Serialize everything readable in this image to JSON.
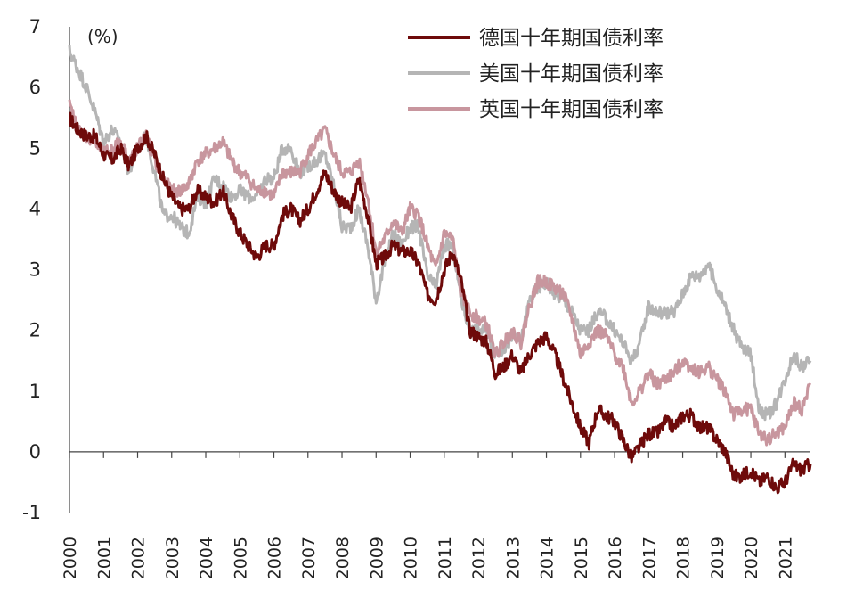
{
  "chart_data": {
    "type": "line",
    "unit_label": "(%)",
    "xlim": [
      2000,
      2021.75
    ],
    "ylim": [
      -1,
      7
    ],
    "y_ticks": [
      7,
      6,
      5,
      4,
      3,
      2,
      1,
      0,
      -1
    ],
    "x_ticks": [
      "2000",
      "2001",
      "2002",
      "2003",
      "2004",
      "2005",
      "2006",
      "2007",
      "2008",
      "2009",
      "2010",
      "2011",
      "2012",
      "2013",
      "2014",
      "2015",
      "2016",
      "2017",
      "2018",
      "2019",
      "2020",
      "2021"
    ],
    "legend_position": "top-right",
    "series": [
      {
        "name": "德国十年期国债利率",
        "color": "#6e0a0a",
        "points": [
          [
            2000.0,
            5.5
          ],
          [
            2000.25,
            5.3
          ],
          [
            2000.5,
            5.2
          ],
          [
            2000.75,
            5.2
          ],
          [
            2001.0,
            4.9
          ],
          [
            2001.25,
            4.8
          ],
          [
            2001.5,
            5.0
          ],
          [
            2001.75,
            4.7
          ],
          [
            2002.0,
            5.0
          ],
          [
            2002.25,
            5.2
          ],
          [
            2002.5,
            4.9
          ],
          [
            2002.75,
            4.5
          ],
          [
            2003.0,
            4.2
          ],
          [
            2003.25,
            4.0
          ],
          [
            2003.5,
            4.0
          ],
          [
            2003.75,
            4.3
          ],
          [
            2004.0,
            4.2
          ],
          [
            2004.25,
            4.1
          ],
          [
            2004.5,
            4.3
          ],
          [
            2004.75,
            3.9
          ],
          [
            2005.0,
            3.6
          ],
          [
            2005.25,
            3.4
          ],
          [
            2005.5,
            3.2
          ],
          [
            2005.75,
            3.4
          ],
          [
            2006.0,
            3.4
          ],
          [
            2006.25,
            3.9
          ],
          [
            2006.5,
            4.0
          ],
          [
            2006.75,
            3.8
          ],
          [
            2007.0,
            4.0
          ],
          [
            2007.25,
            4.3
          ],
          [
            2007.5,
            4.6
          ],
          [
            2007.75,
            4.3
          ],
          [
            2008.0,
            4.1
          ],
          [
            2008.25,
            4.0
          ],
          [
            2008.5,
            4.5
          ],
          [
            2008.75,
            3.9
          ],
          [
            2009.0,
            3.1
          ],
          [
            2009.25,
            3.2
          ],
          [
            2009.5,
            3.4
          ],
          [
            2009.75,
            3.3
          ],
          [
            2010.0,
            3.3
          ],
          [
            2010.25,
            3.1
          ],
          [
            2010.5,
            2.6
          ],
          [
            2010.75,
            2.5
          ],
          [
            2011.0,
            3.0
          ],
          [
            2011.25,
            3.3
          ],
          [
            2011.5,
            2.8
          ],
          [
            2011.75,
            2.0
          ],
          [
            2012.0,
            1.9
          ],
          [
            2012.25,
            1.8
          ],
          [
            2012.5,
            1.3
          ],
          [
            2012.75,
            1.4
          ],
          [
            2013.0,
            1.6
          ],
          [
            2013.25,
            1.3
          ],
          [
            2013.5,
            1.6
          ],
          [
            2013.75,
            1.8
          ],
          [
            2014.0,
            1.9
          ],
          [
            2014.25,
            1.6
          ],
          [
            2014.5,
            1.2
          ],
          [
            2014.75,
            0.8
          ],
          [
            2015.0,
            0.4
          ],
          [
            2015.25,
            0.15
          ],
          [
            2015.5,
            0.7
          ],
          [
            2015.75,
            0.6
          ],
          [
            2016.0,
            0.5
          ],
          [
            2016.25,
            0.2
          ],
          [
            2016.5,
            -0.1
          ],
          [
            2016.75,
            0.1
          ],
          [
            2017.0,
            0.3
          ],
          [
            2017.25,
            0.3
          ],
          [
            2017.5,
            0.5
          ],
          [
            2017.75,
            0.4
          ],
          [
            2018.0,
            0.6
          ],
          [
            2018.25,
            0.6
          ],
          [
            2018.5,
            0.4
          ],
          [
            2018.75,
            0.4
          ],
          [
            2019.0,
            0.2
          ],
          [
            2019.25,
            0.0
          ],
          [
            2019.5,
            -0.4
          ],
          [
            2019.75,
            -0.4
          ],
          [
            2020.0,
            -0.3
          ],
          [
            2020.25,
            -0.5
          ],
          [
            2020.5,
            -0.4
          ],
          [
            2020.75,
            -0.6
          ],
          [
            2021.0,
            -0.5
          ],
          [
            2021.25,
            -0.2
          ],
          [
            2021.5,
            -0.3
          ],
          [
            2021.75,
            -0.2
          ]
        ]
      },
      {
        "name": "美国十年期国债利率",
        "color": "#b5b5b5",
        "points": [
          [
            2000.0,
            6.6
          ],
          [
            2000.25,
            6.3
          ],
          [
            2000.5,
            6.0
          ],
          [
            2000.75,
            5.6
          ],
          [
            2001.0,
            5.1
          ],
          [
            2001.25,
            5.3
          ],
          [
            2001.5,
            5.1
          ],
          [
            2001.75,
            4.6
          ],
          [
            2002.0,
            5.0
          ],
          [
            2002.25,
            5.2
          ],
          [
            2002.5,
            4.6
          ],
          [
            2002.75,
            3.9
          ],
          [
            2003.0,
            3.9
          ],
          [
            2003.25,
            3.7
          ],
          [
            2003.5,
            3.6
          ],
          [
            2003.75,
            4.2
          ],
          [
            2004.0,
            4.1
          ],
          [
            2004.25,
            4.5
          ],
          [
            2004.5,
            4.4
          ],
          [
            2004.75,
            4.2
          ],
          [
            2005.0,
            4.3
          ],
          [
            2005.25,
            4.2
          ],
          [
            2005.5,
            4.2
          ],
          [
            2005.75,
            4.5
          ],
          [
            2006.0,
            4.5
          ],
          [
            2006.25,
            5.0
          ],
          [
            2006.5,
            5.0
          ],
          [
            2006.75,
            4.6
          ],
          [
            2007.0,
            4.7
          ],
          [
            2007.25,
            4.8
          ],
          [
            2007.5,
            4.9
          ],
          [
            2007.75,
            4.4
          ],
          [
            2008.0,
            3.7
          ],
          [
            2008.25,
            3.7
          ],
          [
            2008.5,
            4.0
          ],
          [
            2008.75,
            3.4
          ],
          [
            2009.0,
            2.5
          ],
          [
            2009.25,
            3.1
          ],
          [
            2009.5,
            3.6
          ],
          [
            2009.75,
            3.4
          ],
          [
            2010.0,
            3.7
          ],
          [
            2010.25,
            3.7
          ],
          [
            2010.5,
            2.9
          ],
          [
            2010.75,
            2.7
          ],
          [
            2011.0,
            3.4
          ],
          [
            2011.25,
            3.4
          ],
          [
            2011.5,
            2.5
          ],
          [
            2011.75,
            2.0
          ],
          [
            2012.0,
            2.0
          ],
          [
            2012.25,
            2.0
          ],
          [
            2012.5,
            1.6
          ],
          [
            2012.75,
            1.7
          ],
          [
            2013.0,
            1.9
          ],
          [
            2013.25,
            1.8
          ],
          [
            2013.5,
            2.5
          ],
          [
            2013.75,
            2.7
          ],
          [
            2014.0,
            2.8
          ],
          [
            2014.25,
            2.6
          ],
          [
            2014.5,
            2.5
          ],
          [
            2014.75,
            2.3
          ],
          [
            2015.0,
            2.0
          ],
          [
            2015.25,
            2.0
          ],
          [
            2015.5,
            2.3
          ],
          [
            2015.75,
            2.2
          ],
          [
            2016.0,
            2.0
          ],
          [
            2016.25,
            1.8
          ],
          [
            2016.5,
            1.5
          ],
          [
            2016.75,
            1.8
          ],
          [
            2017.0,
            2.4
          ],
          [
            2017.25,
            2.3
          ],
          [
            2017.5,
            2.3
          ],
          [
            2017.75,
            2.3
          ],
          [
            2018.0,
            2.6
          ],
          [
            2018.25,
            2.9
          ],
          [
            2018.5,
            2.9
          ],
          [
            2018.75,
            3.1
          ],
          [
            2019.0,
            2.7
          ],
          [
            2019.25,
            2.4
          ],
          [
            2019.5,
            2.0
          ],
          [
            2019.75,
            1.7
          ],
          [
            2020.0,
            1.6
          ],
          [
            2020.25,
            0.7
          ],
          [
            2020.5,
            0.6
          ],
          [
            2020.75,
            0.8
          ],
          [
            2021.0,
            1.2
          ],
          [
            2021.25,
            1.6
          ],
          [
            2021.5,
            1.4
          ],
          [
            2021.75,
            1.5
          ]
        ]
      },
      {
        "name": "英国十年期国债利率",
        "color": "#c8969e",
        "points": [
          [
            2000.0,
            5.7
          ],
          [
            2000.25,
            5.3
          ],
          [
            2000.5,
            5.2
          ],
          [
            2000.75,
            5.1
          ],
          [
            2001.0,
            4.9
          ],
          [
            2001.25,
            5.0
          ],
          [
            2001.5,
            5.1
          ],
          [
            2001.75,
            4.8
          ],
          [
            2002.0,
            5.0
          ],
          [
            2002.25,
            5.2
          ],
          [
            2002.5,
            4.8
          ],
          [
            2002.75,
            4.5
          ],
          [
            2003.0,
            4.3
          ],
          [
            2003.25,
            4.3
          ],
          [
            2003.5,
            4.4
          ],
          [
            2003.75,
            4.8
          ],
          [
            2004.0,
            4.9
          ],
          [
            2004.25,
            5.0
          ],
          [
            2004.5,
            5.1
          ],
          [
            2004.75,
            4.8
          ],
          [
            2005.0,
            4.6
          ],
          [
            2005.25,
            4.5
          ],
          [
            2005.5,
            4.3
          ],
          [
            2005.75,
            4.3
          ],
          [
            2006.0,
            4.2
          ],
          [
            2006.25,
            4.6
          ],
          [
            2006.5,
            4.6
          ],
          [
            2006.75,
            4.6
          ],
          [
            2007.0,
            4.9
          ],
          [
            2007.25,
            5.1
          ],
          [
            2007.5,
            5.3
          ],
          [
            2007.75,
            4.9
          ],
          [
            2008.0,
            4.6
          ],
          [
            2008.25,
            4.6
          ],
          [
            2008.5,
            4.8
          ],
          [
            2008.75,
            4.2
          ],
          [
            2009.0,
            3.3
          ],
          [
            2009.25,
            3.5
          ],
          [
            2009.5,
            3.8
          ],
          [
            2009.75,
            3.6
          ],
          [
            2010.0,
            4.0
          ],
          [
            2010.25,
            3.9
          ],
          [
            2010.5,
            3.4
          ],
          [
            2010.75,
            3.0
          ],
          [
            2011.0,
            3.6
          ],
          [
            2011.25,
            3.5
          ],
          [
            2011.5,
            2.6
          ],
          [
            2011.75,
            2.3
          ],
          [
            2012.0,
            2.2
          ],
          [
            2012.25,
            2.1
          ],
          [
            2012.5,
            1.6
          ],
          [
            2012.75,
            1.8
          ],
          [
            2013.0,
            2.0
          ],
          [
            2013.25,
            1.8
          ],
          [
            2013.5,
            2.4
          ],
          [
            2013.75,
            2.8
          ],
          [
            2014.0,
            2.8
          ],
          [
            2014.25,
            2.7
          ],
          [
            2014.5,
            2.6
          ],
          [
            2014.75,
            2.2
          ],
          [
            2015.0,
            1.6
          ],
          [
            2015.25,
            1.8
          ],
          [
            2015.5,
            2.0
          ],
          [
            2015.75,
            1.9
          ],
          [
            2016.0,
            1.6
          ],
          [
            2016.25,
            1.4
          ],
          [
            2016.5,
            0.8
          ],
          [
            2016.75,
            1.0
          ],
          [
            2017.0,
            1.3
          ],
          [
            2017.25,
            1.1
          ],
          [
            2017.5,
            1.2
          ],
          [
            2017.75,
            1.3
          ],
          [
            2018.0,
            1.5
          ],
          [
            2018.25,
            1.4
          ],
          [
            2018.5,
            1.3
          ],
          [
            2018.75,
            1.4
          ],
          [
            2019.0,
            1.2
          ],
          [
            2019.25,
            1.0
          ],
          [
            2019.5,
            0.6
          ],
          [
            2019.75,
            0.7
          ],
          [
            2020.0,
            0.7
          ],
          [
            2020.25,
            0.3
          ],
          [
            2020.5,
            0.2
          ],
          [
            2020.75,
            0.3
          ],
          [
            2021.0,
            0.4
          ],
          [
            2021.25,
            0.8
          ],
          [
            2021.5,
            0.7
          ],
          [
            2021.75,
            1.1
          ]
        ]
      }
    ]
  }
}
